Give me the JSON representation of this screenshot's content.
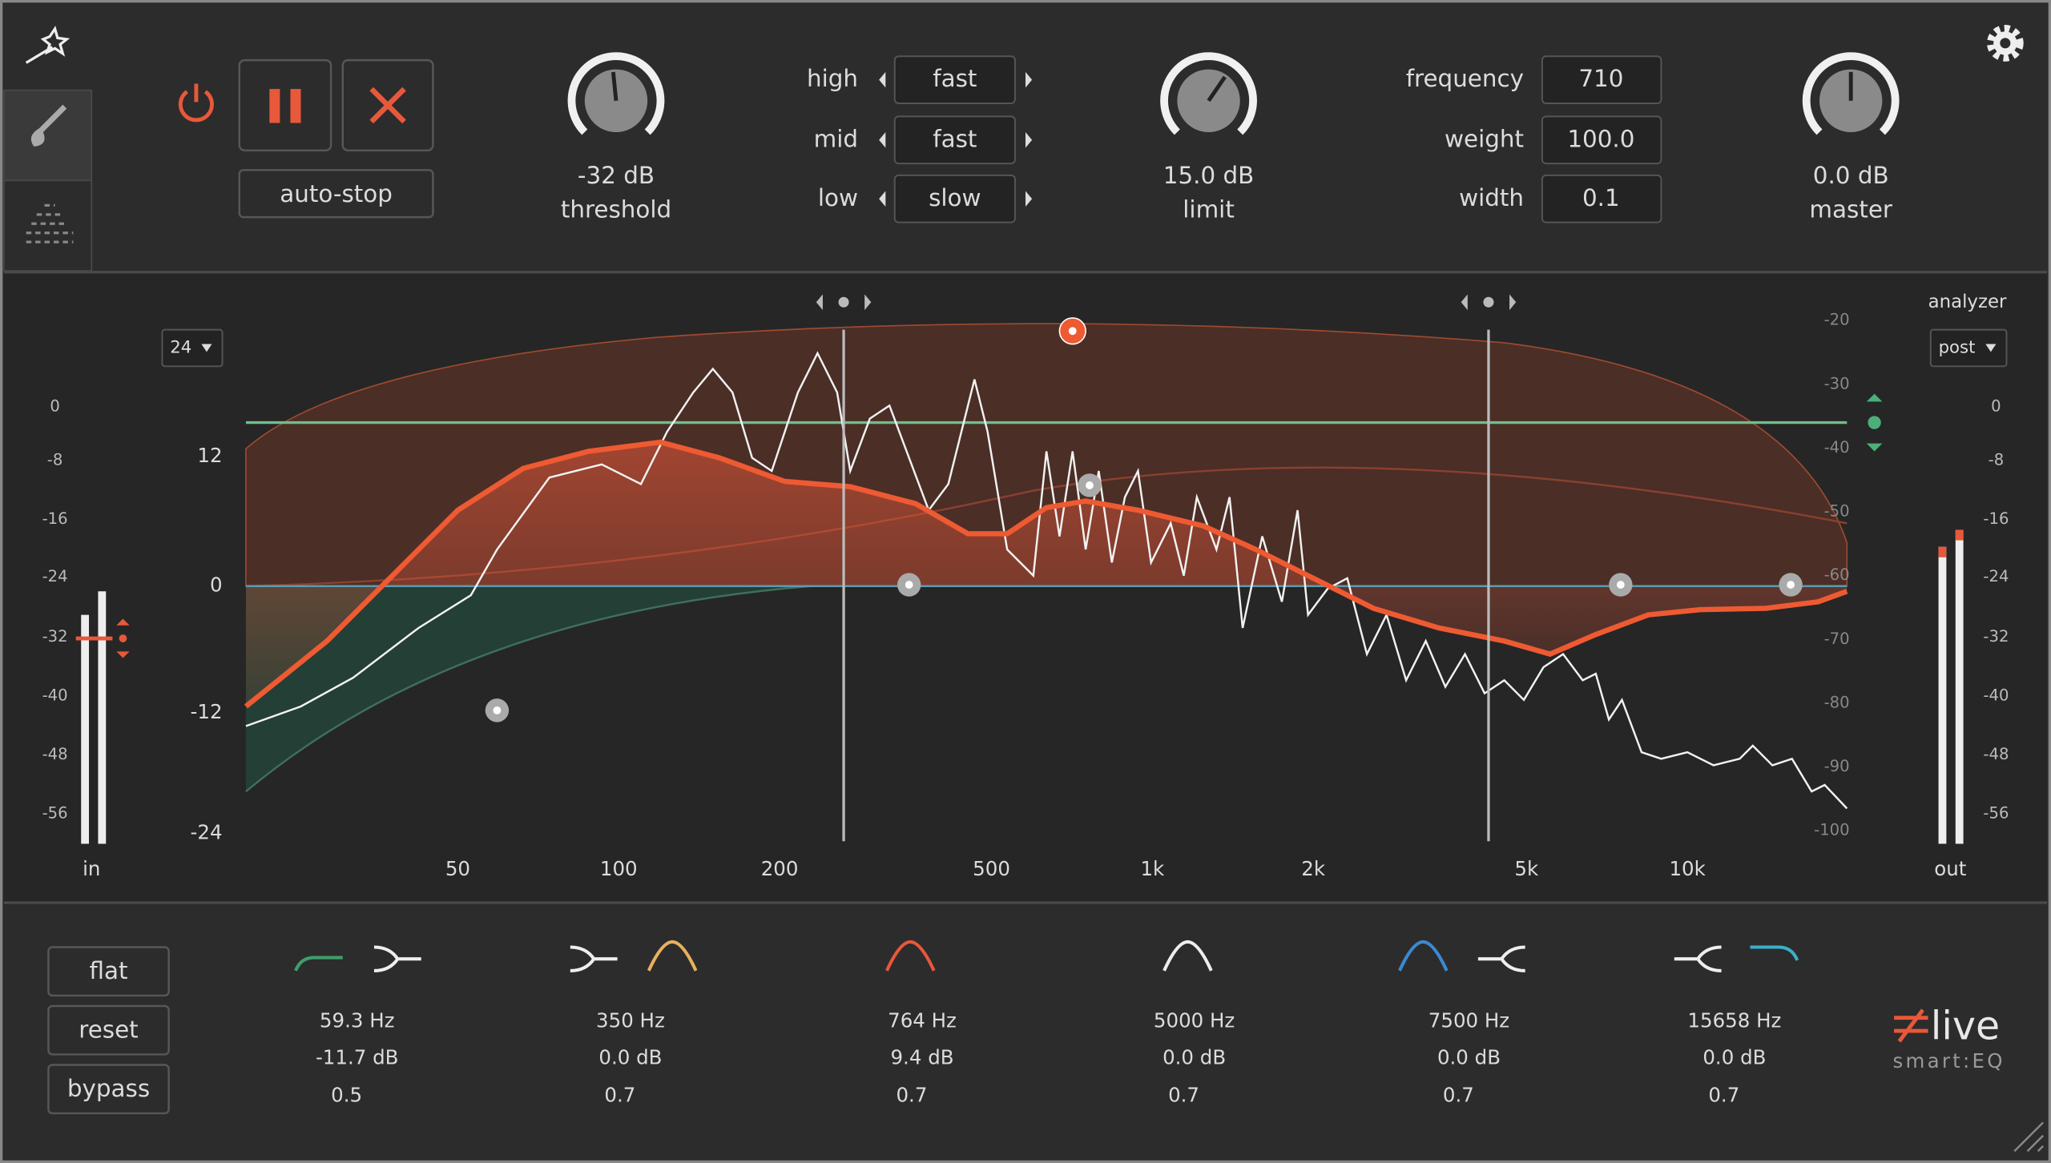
{
  "toolbar": {
    "auto_stop": "auto-stop",
    "threshold": {
      "value": "-32 dB",
      "label": "threshold"
    },
    "speed": [
      {
        "label": "high",
        "value": "fast"
      },
      {
        "label": "mid",
        "value": "fast"
      },
      {
        "label": "low",
        "value": "slow"
      }
    ],
    "limit": {
      "value": "15.0 dB",
      "label": "limit"
    },
    "params": [
      {
        "label": "frequency",
        "value": "710"
      },
      {
        "label": "weight",
        "value": "100.0"
      },
      {
        "label": "width",
        "value": "0.1"
      }
    ],
    "master": {
      "value": "0.0 dB",
      "label": "master"
    }
  },
  "graph": {
    "resolution": "24",
    "analyzer_label": "analyzer",
    "analyzer_mode": "post",
    "in_scale": [
      "0",
      "-8",
      "-16",
      "-24",
      "-32",
      "-40",
      "-48",
      "-56"
    ],
    "in_label": "in",
    "gain_scale": [
      "12",
      "0",
      "-12",
      "-24"
    ],
    "db_scale": [
      "-20",
      "-30",
      "-40",
      "-50",
      "-60",
      "-70",
      "-80",
      "-90",
      "-100"
    ],
    "freq_scale": [
      "50",
      "100",
      "200",
      "500",
      "1k",
      "2k",
      "5k",
      "10k"
    ],
    "out_scale": [
      "0",
      "-8",
      "-16",
      "-24",
      "-32",
      "-40",
      "-48",
      "-56"
    ],
    "out_label": "out"
  },
  "bottom": {
    "buttons": [
      "flat",
      "reset",
      "bypass"
    ],
    "bands": [
      {
        "freq": "59.3 Hz",
        "gain": "-11.7 dB",
        "q": "0.5"
      },
      {
        "freq": "350 Hz",
        "gain": "0.0 dB",
        "q": "0.7"
      },
      {
        "freq": "764 Hz",
        "gain": "9.4 dB",
        "q": "0.7"
      },
      {
        "freq": "5000 Hz",
        "gain": "0.0 dB",
        "q": "0.7"
      },
      {
        "freq": "7500 Hz",
        "gain": "0.0 dB",
        "q": "0.7"
      },
      {
        "freq": "15658 Hz",
        "gain": "0.0 dB",
        "q": "0.7"
      }
    ],
    "brand": "live",
    "product": "smart:EQ"
  }
}
